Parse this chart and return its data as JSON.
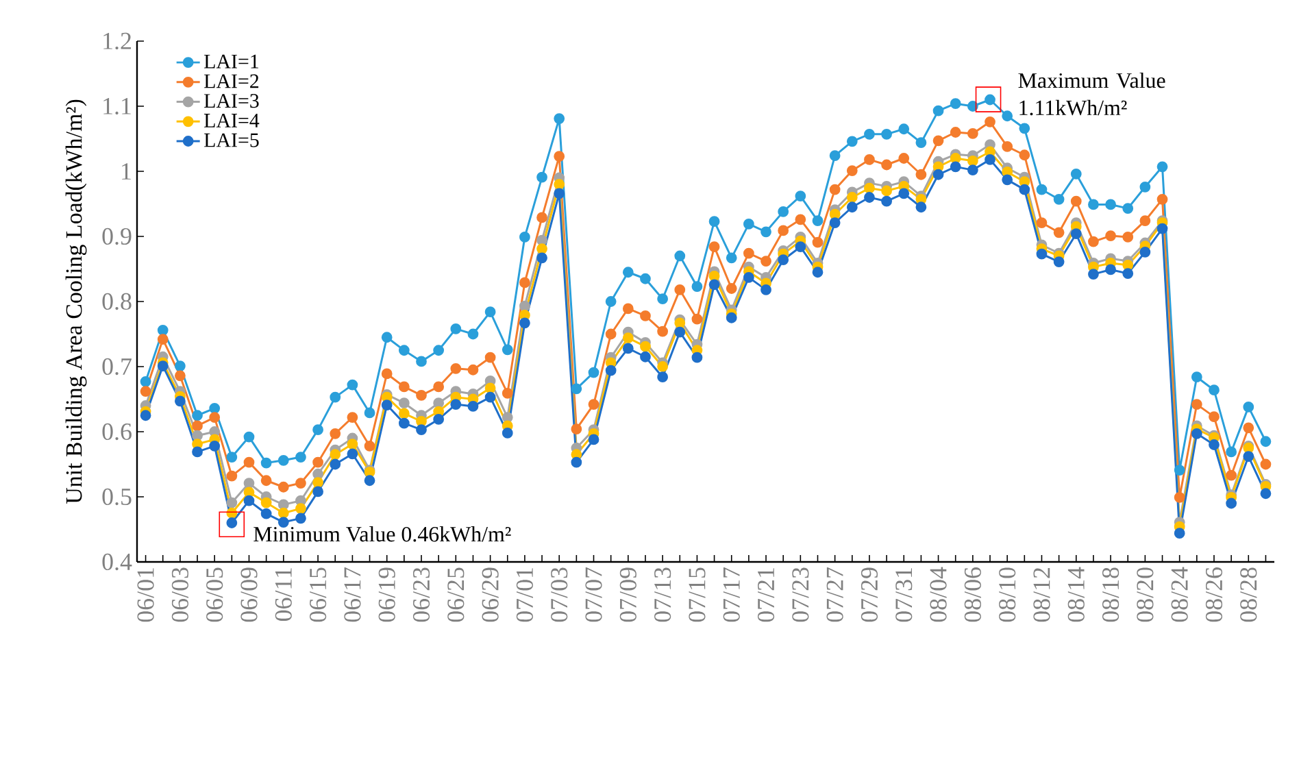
{
  "chart_data": {
    "type": "line",
    "ylabel": "Unit Building Area Cooling Load(kWh/m²)",
    "categories": [
      "06/01",
      null,
      "06/03",
      null,
      "06/05",
      null,
      "06/09",
      null,
      "06/11",
      null,
      "06/15",
      null,
      "06/17",
      null,
      "06/19",
      null,
      "06/23",
      null,
      "06/25",
      null,
      "06/29",
      null,
      "07/01",
      null,
      "07/03",
      null,
      "07/07",
      null,
      "07/09",
      null,
      "07/13",
      null,
      "07/15",
      null,
      "07/17",
      null,
      "07/21",
      null,
      "07/23",
      null,
      "07/27",
      null,
      "07/29",
      null,
      "07/31",
      null,
      "08/04",
      null,
      "08/06",
      null,
      "08/10",
      null,
      "08/12",
      null,
      "08/14",
      null,
      "08/18",
      null,
      "08/20",
      null,
      "08/24",
      null,
      "08/26",
      null,
      "08/28",
      null
    ],
    "series": [
      {
        "name": "LAI=1",
        "color": "#2a9fda",
        "values": [
          0.677,
          0.756,
          0.701,
          0.625,
          0.636,
          0.561,
          0.592,
          0.552,
          0.556,
          0.561,
          0.603,
          0.653,
          0.672,
          0.629,
          0.745,
          0.725,
          0.708,
          0.725,
          0.758,
          0.75,
          0.784,
          0.726,
          0.899,
          0.991,
          1.081,
          0.666,
          0.691,
          0.8,
          0.845,
          0.835,
          0.804,
          0.87,
          0.823,
          0.923,
          0.867,
          0.919,
          0.907,
          0.938,
          0.962,
          0.924,
          1.024,
          1.046,
          1.057,
          1.057,
          1.065,
          1.044,
          1.093,
          1.104,
          1.1,
          1.11,
          1.085,
          1.066,
          0.972,
          0.957,
          0.996,
          0.949,
          0.949,
          0.943,
          0.976,
          1.007,
          0.541,
          0.684,
          0.664,
          0.569,
          0.638,
          0.585
        ]
      },
      {
        "name": "LAI=2",
        "color": "#f47c2c",
        "values": [
          0.662,
          0.742,
          0.686,
          0.609,
          0.622,
          0.532,
          0.553,
          0.525,
          0.515,
          0.521,
          0.553,
          0.597,
          0.622,
          0.578,
          0.689,
          0.669,
          0.656,
          0.669,
          0.697,
          0.695,
          0.714,
          0.659,
          0.829,
          0.929,
          1.023,
          0.604,
          0.642,
          0.75,
          0.789,
          0.778,
          0.754,
          0.818,
          0.773,
          0.884,
          0.82,
          0.874,
          0.862,
          0.909,
          0.926,
          0.891,
          0.972,
          1.001,
          1.018,
          1.01,
          1.02,
          0.995,
          1.047,
          1.06,
          1.058,
          1.076,
          1.038,
          1.025,
          0.921,
          0.906,
          0.954,
          0.892,
          0.901,
          0.899,
          0.924,
          0.957,
          0.499,
          0.642,
          0.623,
          0.533,
          0.606,
          0.55
        ]
      },
      {
        "name": "LAI=3",
        "color": "#a5a5a5",
        "values": [
          0.64,
          0.715,
          0.662,
          0.594,
          0.6,
          0.491,
          0.521,
          0.5,
          0.488,
          0.494,
          0.535,
          0.572,
          0.59,
          0.541,
          0.657,
          0.644,
          0.625,
          0.644,
          0.662,
          0.658,
          0.678,
          0.622,
          0.793,
          0.894,
          0.99,
          0.575,
          0.603,
          0.714,
          0.753,
          0.737,
          0.706,
          0.772,
          0.734,
          0.846,
          0.787,
          0.853,
          0.837,
          0.878,
          0.899,
          0.859,
          0.941,
          0.968,
          0.982,
          0.977,
          0.984,
          0.962,
          1.015,
          1.026,
          1.024,
          1.041,
          1.005,
          0.991,
          0.887,
          0.874,
          0.921,
          0.859,
          0.866,
          0.862,
          0.89,
          0.924,
          0.461,
          0.609,
          0.594,
          0.503,
          0.578,
          0.519
        ]
      },
      {
        "name": "LAI=4",
        "color": "#ffc000",
        "values": [
          0.631,
          0.706,
          0.654,
          0.581,
          0.588,
          0.475,
          0.507,
          0.491,
          0.475,
          0.482,
          0.522,
          0.565,
          0.581,
          0.538,
          0.653,
          0.628,
          0.616,
          0.631,
          0.653,
          0.65,
          0.667,
          0.609,
          0.779,
          0.881,
          0.98,
          0.565,
          0.597,
          0.706,
          0.744,
          0.731,
          0.7,
          0.767,
          0.725,
          0.839,
          0.781,
          0.846,
          0.828,
          0.873,
          0.893,
          0.853,
          0.934,
          0.96,
          0.974,
          0.97,
          0.977,
          0.957,
          1.007,
          1.02,
          1.016,
          1.03,
          0.999,
          0.984,
          0.881,
          0.87,
          0.915,
          0.853,
          0.859,
          0.856,
          0.885,
          0.921,
          0.454,
          0.604,
          0.591,
          0.499,
          0.575,
          0.516
        ]
      },
      {
        "name": "LAI=5",
        "color": "#1f6fc9",
        "values": [
          0.625,
          0.701,
          0.647,
          0.569,
          0.578,
          0.46,
          0.494,
          0.474,
          0.461,
          0.467,
          0.508,
          0.55,
          0.566,
          0.525,
          0.641,
          0.613,
          0.603,
          0.619,
          0.642,
          0.639,
          0.653,
          0.598,
          0.767,
          0.867,
          0.966,
          0.553,
          0.588,
          0.694,
          0.728,
          0.715,
          0.684,
          0.753,
          0.714,
          0.826,
          0.775,
          0.837,
          0.818,
          0.864,
          0.884,
          0.845,
          0.921,
          0.945,
          0.96,
          0.954,
          0.966,
          0.945,
          0.995,
          1.007,
          1.002,
          1.018,
          0.987,
          0.972,
          0.873,
          0.861,
          0.904,
          0.842,
          0.849,
          0.843,
          0.876,
          0.912,
          0.444,
          0.597,
          0.58,
          0.49,
          0.562,
          0.505
        ]
      }
    ],
    "ylim": [
      0.4,
      1.2
    ],
    "yticks": [
      0.4,
      0.5,
      0.6,
      0.7,
      0.8,
      0.9,
      1,
      1.1,
      1.2
    ],
    "grid": false,
    "legend": "top left",
    "marker": "circle",
    "line_style": "solid",
    "annotations": [
      "Minimum Value 0.46kWh/m²",
      "Maximum Value 1.11kWh/m²"
    ]
  }
}
